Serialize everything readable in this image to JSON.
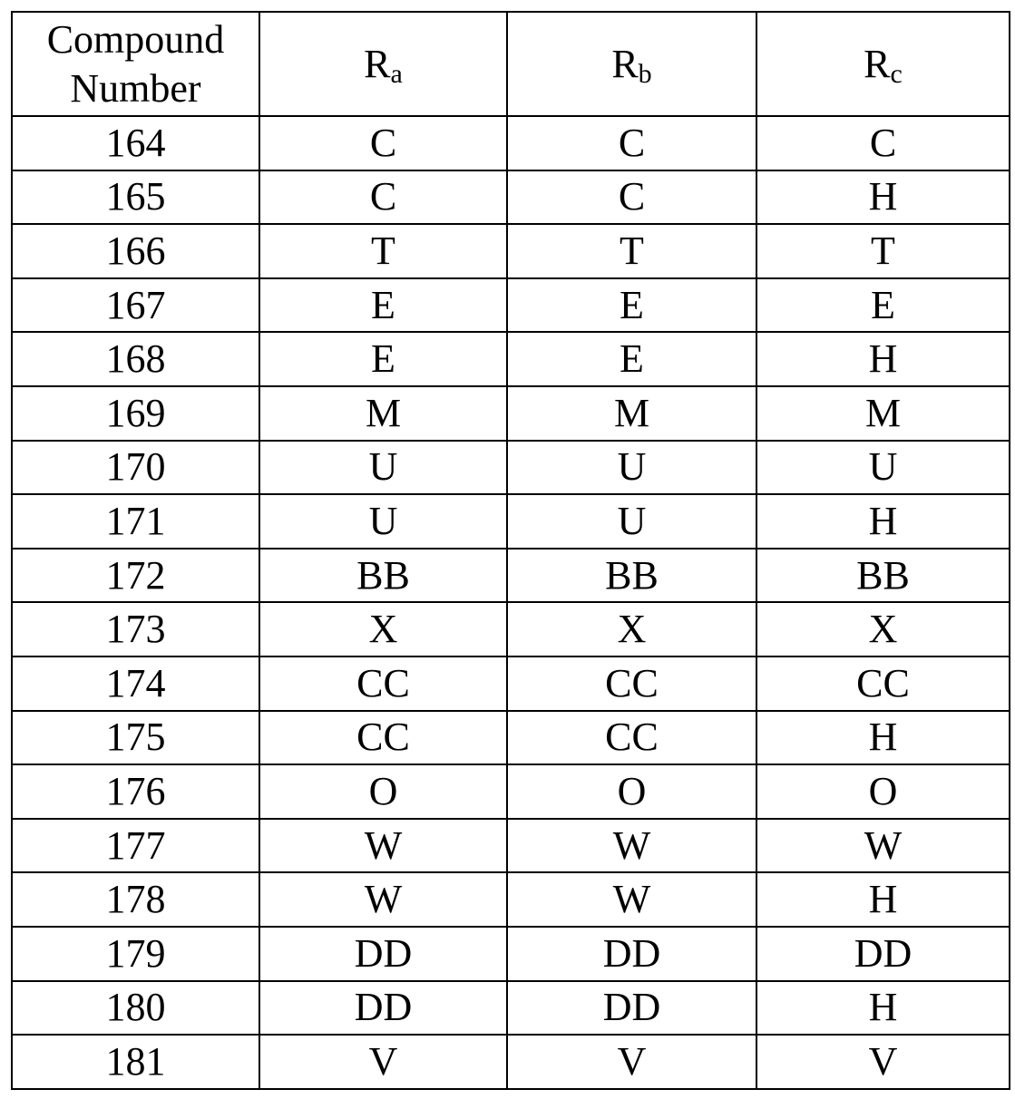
{
  "table": {
    "headers": [
      {
        "text": "Compound Number"
      },
      {
        "base": "R",
        "sub": "a"
      },
      {
        "base": "R",
        "sub": "b"
      },
      {
        "base": "R",
        "sub": "c"
      }
    ],
    "rows": [
      [
        "164",
        "C",
        "C",
        "C"
      ],
      [
        "165",
        "C",
        "C",
        "H"
      ],
      [
        "166",
        "T",
        "T",
        "T"
      ],
      [
        "167",
        "E",
        "E",
        "E"
      ],
      [
        "168",
        "E",
        "E",
        "H"
      ],
      [
        "169",
        "M",
        "M",
        "M"
      ],
      [
        "170",
        "U",
        "U",
        "U"
      ],
      [
        "171",
        "U",
        "U",
        "H"
      ],
      [
        "172",
        "BB",
        "BB",
        "BB"
      ],
      [
        "173",
        "X",
        "X",
        "X"
      ],
      [
        "174",
        "CC",
        "CC",
        "CC"
      ],
      [
        "175",
        "CC",
        "CC",
        "H"
      ],
      [
        "176",
        "O",
        "O",
        "O"
      ],
      [
        "177",
        "W",
        "W",
        "W"
      ],
      [
        "178",
        "W",
        "W",
        "H"
      ],
      [
        "179",
        "DD",
        "DD",
        "DD"
      ],
      [
        "180",
        "DD",
        "DD",
        "H"
      ],
      [
        "181",
        "V",
        "V",
        "V"
      ]
    ]
  }
}
